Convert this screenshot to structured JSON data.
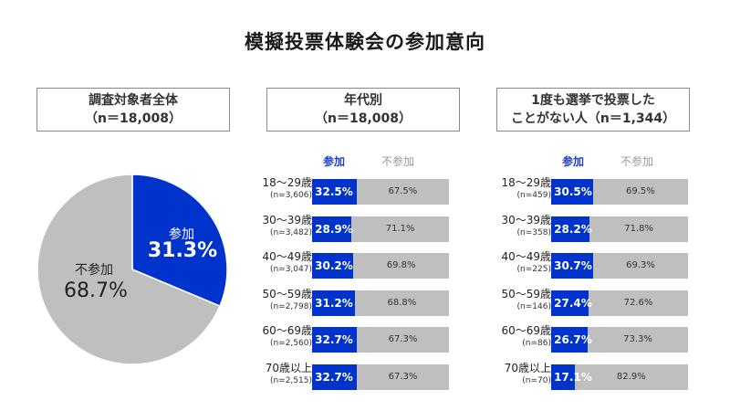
{
  "title": "模擬投票体験会の参加意向",
  "boxes": {
    "total": [
      "調査対象者全体",
      "（n＝18,008）"
    ],
    "age": [
      "年代別",
      "（n＝18,008）"
    ],
    "never": [
      "1度も選挙で投票した",
      "ことがない人（n＝1,344）"
    ]
  },
  "colors": {
    "join": "#0033cc",
    "not": "#bfbfbf"
  },
  "chart_data": [
    {
      "type": "pie",
      "labels": [
        "参加",
        "不参加"
      ],
      "values": [
        31.3,
        68.7
      ],
      "value_labels": [
        "31.3%",
        "68.7%"
      ]
    },
    {
      "type": "bar",
      "stacked": true,
      "orientation": "horizontal",
      "legend": [
        "参加",
        "不参加"
      ],
      "categories": [
        "18～29歳",
        "30～39歳",
        "40～49歳",
        "50～59歳",
        "60～69歳",
        "70歳以上"
      ],
      "n_labels": [
        "(n=3,606)",
        "(n=3,482)",
        "(n=3,047)",
        "(n=2,798)",
        "(n=2,560)",
        "(n=2,515)"
      ],
      "series": [
        {
          "name": "参加",
          "values": [
            32.5,
            28.9,
            30.2,
            31.2,
            32.7,
            32.7
          ]
        },
        {
          "name": "不参加",
          "values": [
            67.5,
            71.1,
            69.8,
            68.8,
            67.3,
            67.3
          ]
        }
      ],
      "xlim": [
        0,
        100
      ]
    },
    {
      "type": "bar",
      "stacked": true,
      "orientation": "horizontal",
      "legend": [
        "参加",
        "不参加"
      ],
      "categories": [
        "18～29歳",
        "30～39歳",
        "40～49歳",
        "50～59歳",
        "60～69歳",
        "70歳以上"
      ],
      "n_labels": [
        "(n=459)",
        "(n=358)",
        "(n=225)",
        "(n=146)",
        "(n=86)",
        "(n=70)"
      ],
      "series": [
        {
          "name": "参加",
          "values": [
            30.5,
            28.2,
            30.7,
            27.4,
            26.7,
            17.1
          ]
        },
        {
          "name": "不参加",
          "values": [
            69.5,
            71.8,
            69.3,
            72.6,
            73.3,
            82.9
          ]
        }
      ],
      "xlim": [
        0,
        100
      ]
    }
  ]
}
